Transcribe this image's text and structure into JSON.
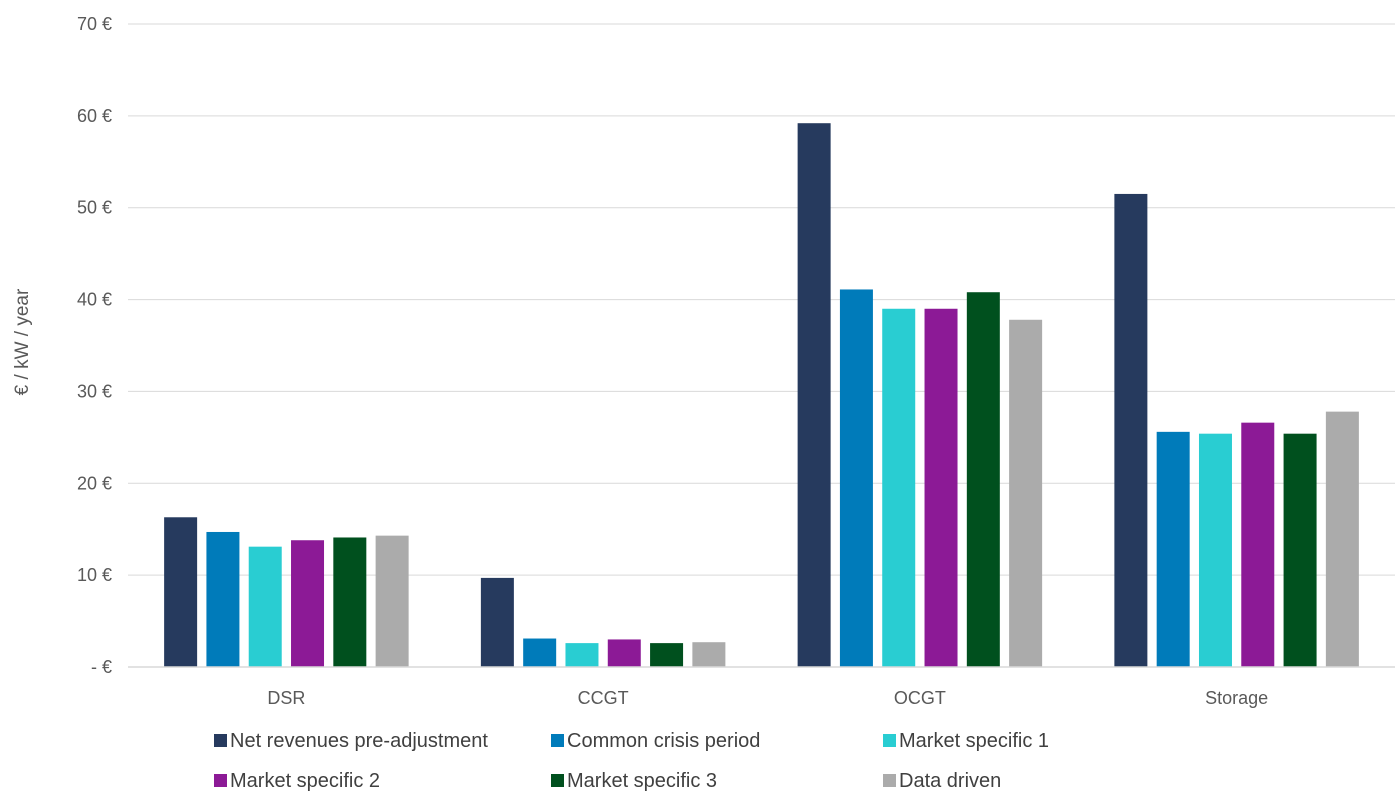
{
  "chart_data": {
    "type": "bar",
    "title": "",
    "xlabel": "",
    "ylabel": "€ / kW / year",
    "ylim": [
      0,
      70
    ],
    "yticks": [
      0,
      10,
      20,
      30,
      40,
      50,
      60,
      70
    ],
    "ytick_labels": [
      "- €",
      "10 €",
      "20 €",
      "30 €",
      "40 €",
      "50 €",
      "60 €",
      "70 €"
    ],
    "grid": true,
    "legend_position": "bottom",
    "categories": [
      "DSR",
      "CCGT",
      "OCGT",
      "Storage"
    ],
    "series": [
      {
        "name": "Net revenues pre-adjustment",
        "color": "#263a5e",
        "values": [
          16.3,
          9.7,
          59.2,
          51.5
        ]
      },
      {
        "name": "Common crisis period",
        "color": "#007bba",
        "values": [
          14.7,
          3.1,
          41.1,
          25.6
        ]
      },
      {
        "name": "Market specific 1",
        "color": "#29cdd2",
        "values": [
          13.1,
          2.6,
          39.0,
          25.4
        ]
      },
      {
        "name": "Market specific 2",
        "color": "#8c1a96",
        "values": [
          13.8,
          3.0,
          39.0,
          26.6
        ]
      },
      {
        "name": "Market specific 3",
        "color": "#00501e",
        "values": [
          14.1,
          2.6,
          40.8,
          25.4
        ]
      },
      {
        "name": "Data driven",
        "color": "#ababab",
        "values": [
          14.3,
          2.7,
          37.8,
          27.8
        ]
      }
    ]
  }
}
